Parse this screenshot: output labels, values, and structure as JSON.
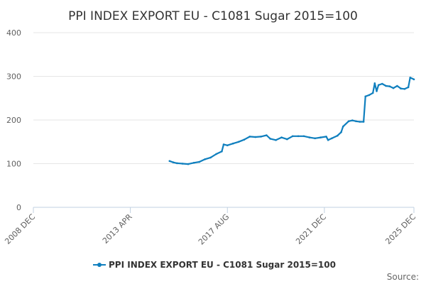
{
  "chart_data": {
    "type": "line",
    "title": "PPI INDEX EXPORT EU - C1081 Sugar 2015=100",
    "xlabel": "",
    "ylabel": "",
    "xlim": [
      "2008-12",
      "2025-12"
    ],
    "ylim": [
      0,
      400
    ],
    "y_ticks": [
      "0",
      "100",
      "200",
      "300",
      "400"
    ],
    "x_ticks": [
      {
        "label": "2008 DEC",
        "date": "2008-12"
      },
      {
        "label": "2013 APR",
        "date": "2013-04"
      },
      {
        "label": "2017 AUG",
        "date": "2017-08"
      },
      {
        "label": "2021 DEC",
        "date": "2021-12"
      },
      {
        "label": "2025 DEC",
        "date": "2025-12"
      }
    ],
    "grid": true,
    "legend_position": "bottom",
    "series": [
      {
        "name": "PPI INDEX EXPORT EU - C1081 Sugar 2015=100",
        "color": "#0f7fbe",
        "points": [
          [
            "2015-01",
            106
          ],
          [
            "2015-03",
            103
          ],
          [
            "2015-05",
            101
          ],
          [
            "2015-08",
            100
          ],
          [
            "2015-11",
            99
          ],
          [
            "2016-02",
            102
          ],
          [
            "2016-05",
            104
          ],
          [
            "2016-08",
            110
          ],
          [
            "2016-11",
            114
          ],
          [
            "2017-02",
            122
          ],
          [
            "2017-05",
            128
          ],
          [
            "2017-06",
            144
          ],
          [
            "2017-08",
            142
          ],
          [
            "2017-11",
            146
          ],
          [
            "2018-02",
            150
          ],
          [
            "2018-05",
            155
          ],
          [
            "2018-08",
            162
          ],
          [
            "2018-11",
            161
          ],
          [
            "2019-02",
            162
          ],
          [
            "2019-05",
            165
          ],
          [
            "2019-07",
            157
          ],
          [
            "2019-10",
            154
          ],
          [
            "2020-01",
            160
          ],
          [
            "2020-04",
            156
          ],
          [
            "2020-07",
            163
          ],
          [
            "2020-10",
            163
          ],
          [
            "2021-01",
            163
          ],
          [
            "2021-04",
            160
          ],
          [
            "2021-07",
            158
          ],
          [
            "2021-10",
            160
          ],
          [
            "2022-01",
            162
          ],
          [
            "2022-02",
            154
          ],
          [
            "2022-04",
            158
          ],
          [
            "2022-07",
            164
          ],
          [
            "2022-09",
            172
          ],
          [
            "2022-10",
            185
          ],
          [
            "2023-01",
            197
          ],
          [
            "2023-03",
            199
          ],
          [
            "2023-05",
            197
          ],
          [
            "2023-07",
            196
          ],
          [
            "2023-09",
            196
          ],
          [
            "2023-10",
            254
          ],
          [
            "2023-12",
            257
          ],
          [
            "2024-02",
            262
          ],
          [
            "2024-03",
            284
          ],
          [
            "2024-04",
            266
          ],
          [
            "2024-05",
            280
          ],
          [
            "2024-07",
            283
          ],
          [
            "2024-09",
            278
          ],
          [
            "2024-11",
            277
          ],
          [
            "2025-01",
            273
          ],
          [
            "2025-03",
            278
          ],
          [
            "2025-05",
            272
          ],
          [
            "2025-07",
            271
          ],
          [
            "2025-09",
            275
          ],
          [
            "2025-10",
            297
          ],
          [
            "2025-12",
            293
          ]
        ]
      }
    ],
    "source_label": "Source:"
  }
}
